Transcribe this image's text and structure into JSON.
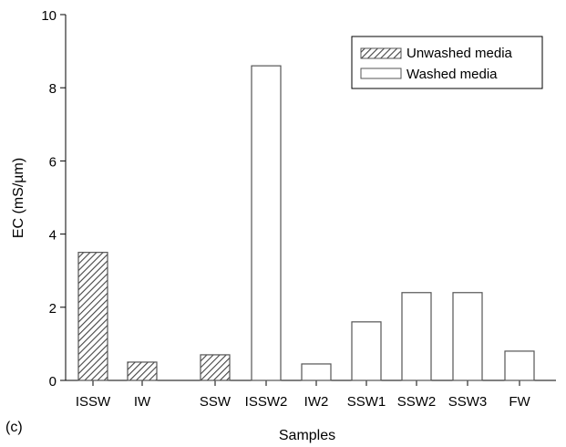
{
  "panel_label": "(c)",
  "chart_data": {
    "type": "bar",
    "xlabel": "Samples",
    "ylabel": "EC (mS/µm)",
    "ylim": [
      0,
      10
    ],
    "yticks": [
      0,
      2,
      4,
      6,
      8,
      10
    ],
    "grid": false,
    "legend_position": "top-right",
    "categories": [
      "ISSW",
      "IW",
      "SSW",
      "ISSW2",
      "IW2",
      "SSW1",
      "SSW2",
      "SSW3",
      "FW"
    ],
    "values": [
      3.5,
      0.5,
      0.7,
      8.6,
      0.45,
      1.6,
      2.4,
      2.4,
      0.8
    ],
    "groups": [
      "unwashed",
      "unwashed",
      "unwashed",
      "washed",
      "washed",
      "washed",
      "washed",
      "washed",
      "washed"
    ],
    "series": [
      {
        "key": "unwashed",
        "name": "Unwashed media",
        "fill": "hatched",
        "color": "#555555"
      },
      {
        "key": "washed",
        "name": "Washed media",
        "fill": "none",
        "color": "#555555"
      }
    ]
  }
}
